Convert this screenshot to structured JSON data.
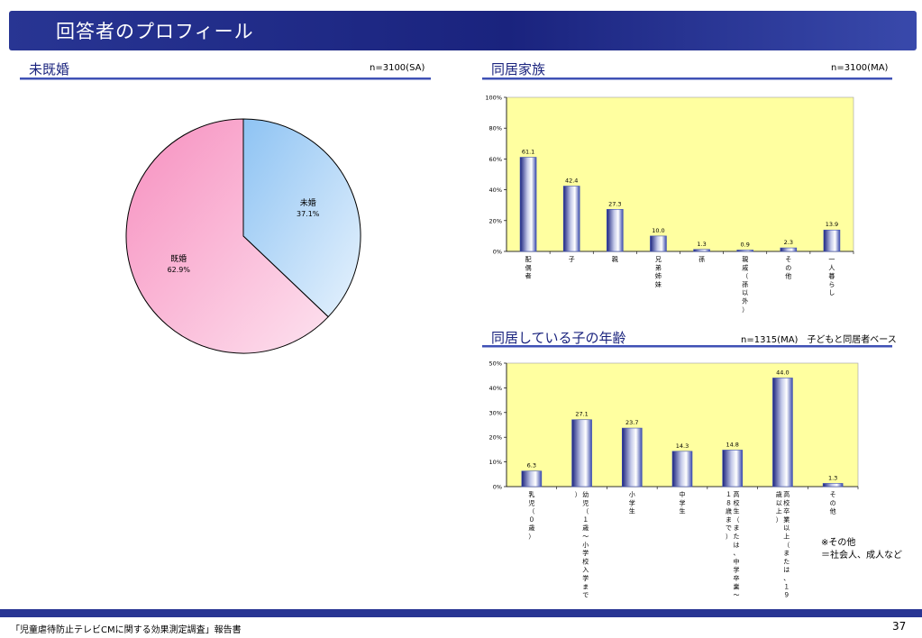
{
  "title": "回答者のプロフィール",
  "chart_data": [
    {
      "type": "pie",
      "title": "未既婚",
      "note": "n=3100(SA)",
      "slices": [
        {
          "label": "未婚",
          "value": 37.1,
          "value_label": "37.1%",
          "color": "#a6d0f6"
        },
        {
          "label": "既婚",
          "value": 62.9,
          "value_label": "62.9%",
          "color": "#f9a6cc"
        }
      ]
    },
    {
      "type": "bar",
      "title": "同居家族",
      "note": "n=3100(MA)",
      "categories": [
        "配偶者",
        "子",
        "親",
        "兄弟姉妹",
        "孫",
        "親戚（孫以外）",
        "その他",
        "一人暮らし"
      ],
      "values": [
        61.1,
        42.4,
        27.3,
        10.0,
        1.3,
        0.9,
        2.3,
        13.9
      ],
      "value_labels": [
        "61.1",
        "42.4",
        "27.3",
        "10.0",
        "1.3",
        "0.9",
        "2.3",
        "13.9"
      ],
      "ylim": [
        0,
        100
      ],
      "yticks": [
        "0%",
        "20%",
        "40%",
        "60%",
        "80%",
        "100%"
      ],
      "grid": false,
      "plot_bg": "#ffffa0",
      "bar_color": "#3f51b5"
    },
    {
      "type": "bar",
      "title": "同居している子の年齢",
      "note": "n=1315(MA)　子どもと同居者ベース",
      "categories": [
        "乳児（０歳）",
        "幼児（１歳～小学校入学まで）",
        "小学生",
        "中学生",
        "高校生（または、中学卒業～１８歳まで）",
        "高校卒業以上（または、１９歳以上）",
        "その他"
      ],
      "values": [
        6.3,
        27.1,
        23.7,
        14.3,
        14.8,
        44.0,
        1.3
      ],
      "value_labels": [
        "6.3",
        "27.1",
        "23.7",
        "14.3",
        "14.8",
        "44.0",
        "1.3"
      ],
      "ylim": [
        0,
        50
      ],
      "yticks": [
        "0%",
        "10%",
        "20%",
        "30%",
        "40%",
        "50%"
      ],
      "grid": false,
      "plot_bg": "#ffffa0",
      "bar_color": "#3f51b5"
    }
  ],
  "footnote": [
    "※その他",
    "＝社会人、成人など"
  ],
  "footer": "「児童虐待防止テレビCMに関する効果測定調査」報告書",
  "page_number": "37"
}
